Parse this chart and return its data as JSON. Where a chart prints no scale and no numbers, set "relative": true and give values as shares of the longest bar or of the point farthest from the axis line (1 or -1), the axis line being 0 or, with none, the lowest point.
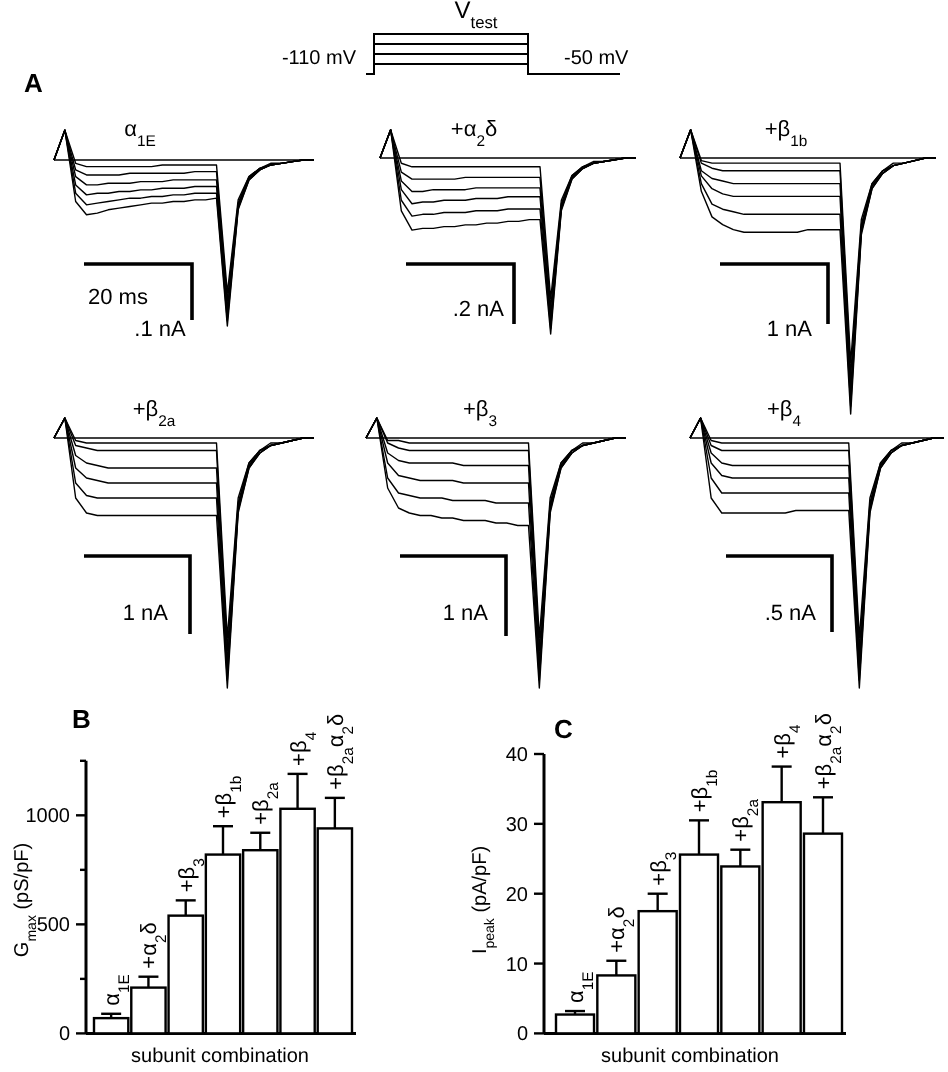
{
  "chart_data": [
    {
      "type": "other",
      "annotations": [
        "V$_{test}$",
        "-110 mV",
        "-50 mV"
      ]
    },
    {
      "type": "line",
      "title": "α$_{1E}$",
      "relative": true,
      "categories": [
        null,
        null,
        null,
        null,
        null,
        null,
        null,
        null,
        null,
        null,
        null,
        null,
        null,
        null,
        null,
        null,
        null,
        null,
        null,
        null,
        null,
        null,
        null,
        null,
        null
      ],
      "annotations": [
        "A",
        "20 ms",
        ".1 nA"
      ],
      "series": [
        {
          "color": "#000000",
          "values": [
            0,
            0.18,
            -0.25,
            -0.33,
            -0.32,
            -0.3,
            -0.29,
            -0.28,
            -0.27,
            -0.26,
            -0.26,
            -0.25,
            -0.25,
            -0.24,
            -0.24,
            -0.23,
            -1,
            -0.3,
            -0.12,
            -0.06,
            -0.03,
            -0.02,
            -0.01,
            0,
            0
          ]
        },
        {
          "color": "#000000",
          "values": [
            0,
            0.18,
            -0.2,
            -0.27,
            -0.26,
            -0.25,
            -0.24,
            -0.23,
            -0.23,
            -0.22,
            -0.22,
            -0.21,
            -0.21,
            -0.2,
            -0.2,
            -0.2,
            -0.97,
            -0.29,
            -0.12,
            -0.06,
            -0.03,
            -0.02,
            -0.01,
            0,
            0
          ]
        },
        {
          "color": "#000000",
          "values": [
            0,
            0.18,
            -0.15,
            -0.21,
            -0.2,
            -0.2,
            -0.19,
            -0.19,
            -0.18,
            -0.18,
            -0.17,
            -0.17,
            -0.17,
            -0.16,
            -0.16,
            -0.16,
            -0.94,
            -0.28,
            -0.11,
            -0.06,
            -0.03,
            -0.02,
            -0.01,
            0,
            0
          ]
        },
        {
          "color": "#000000",
          "values": [
            0,
            0.18,
            -0.1,
            -0.15,
            -0.15,
            -0.14,
            -0.14,
            -0.14,
            -0.13,
            -0.13,
            -0.13,
            -0.12,
            -0.12,
            -0.12,
            -0.12,
            -0.12,
            -0.9,
            -0.27,
            -0.11,
            -0.05,
            -0.03,
            -0.02,
            -0.01,
            0,
            0
          ]
        },
        {
          "color": "#000000",
          "values": [
            0,
            0.18,
            -0.06,
            -0.09,
            -0.09,
            -0.09,
            -0.09,
            -0.08,
            -0.08,
            -0.08,
            -0.08,
            -0.08,
            -0.08,
            -0.07,
            -0.07,
            -0.07,
            -0.85,
            -0.26,
            -0.1,
            -0.05,
            -0.03,
            -0.02,
            -0.01,
            0,
            0
          ]
        },
        {
          "color": "#000000",
          "values": [
            0,
            0.18,
            -0.02,
            -0.04,
            -0.04,
            -0.04,
            -0.04,
            -0.04,
            -0.04,
            -0.04,
            -0.03,
            -0.03,
            -0.03,
            -0.03,
            -0.03,
            -0.03,
            -0.8,
            -0.24,
            -0.1,
            -0.05,
            -0.02,
            -0.02,
            -0.01,
            0,
            0
          ]
        }
      ]
    },
    {
      "type": "line",
      "title": "+α$_{2}$δ",
      "relative": true,
      "categories": [
        null,
        null,
        null,
        null,
        null,
        null,
        null,
        null,
        null,
        null,
        null,
        null,
        null,
        null,
        null,
        null,
        null,
        null,
        null,
        null,
        null,
        null,
        null,
        null,
        null
      ],
      "annotations": [
        ".2 nA"
      ],
      "series": [
        {
          "color": "#000000",
          "values": [
            0,
            0.16,
            -0.3,
            -0.41,
            -0.4,
            -0.4,
            -0.39,
            -0.39,
            -0.38,
            -0.38,
            -0.37,
            -0.37,
            -0.36,
            -0.36,
            -0.35,
            -0.35,
            -1,
            -0.3,
            -0.12,
            -0.06,
            -0.03,
            -0.02,
            -0.01,
            0,
            0
          ]
        },
        {
          "color": "#000000",
          "values": [
            0,
            0.16,
            -0.24,
            -0.33,
            -0.32,
            -0.32,
            -0.31,
            -0.31,
            -0.31,
            -0.3,
            -0.3,
            -0.3,
            -0.29,
            -0.29,
            -0.29,
            -0.29,
            -0.97,
            -0.29,
            -0.12,
            -0.06,
            -0.03,
            -0.02,
            -0.01,
            0,
            0
          ]
        },
        {
          "color": "#000000",
          "values": [
            0,
            0.16,
            -0.18,
            -0.26,
            -0.25,
            -0.25,
            -0.24,
            -0.24,
            -0.24,
            -0.23,
            -0.23,
            -0.23,
            -0.22,
            -0.22,
            -0.22,
            -0.22,
            -0.94,
            -0.28,
            -0.11,
            -0.06,
            -0.03,
            -0.02,
            -0.01,
            0,
            0
          ]
        },
        {
          "color": "#000000",
          "values": [
            0,
            0.16,
            -0.13,
            -0.19,
            -0.19,
            -0.18,
            -0.18,
            -0.18,
            -0.18,
            -0.17,
            -0.17,
            -0.17,
            -0.17,
            -0.17,
            -0.17,
            -0.17,
            -0.9,
            -0.27,
            -0.11,
            -0.05,
            -0.03,
            -0.02,
            -0.01,
            0,
            0
          ]
        },
        {
          "color": "#000000",
          "values": [
            0,
            0.16,
            -0.08,
            -0.12,
            -0.12,
            -0.12,
            -0.12,
            -0.12,
            -0.11,
            -0.11,
            -0.11,
            -0.11,
            -0.11,
            -0.11,
            -0.11,
            -0.11,
            -0.85,
            -0.26,
            -0.1,
            -0.05,
            -0.03,
            -0.02,
            -0.01,
            0,
            0
          ]
        },
        {
          "color": "#000000",
          "values": [
            0,
            0.16,
            -0.03,
            -0.05,
            -0.05,
            -0.05,
            -0.05,
            -0.05,
            -0.05,
            -0.05,
            -0.05,
            -0.05,
            -0.05,
            -0.05,
            -0.05,
            -0.05,
            -0.8,
            -0.24,
            -0.1,
            -0.05,
            -0.02,
            -0.02,
            -0.01,
            0,
            0
          ]
        }
      ]
    },
    {
      "type": "line",
      "title": "+β$_{1b}$",
      "relative": true,
      "categories": [
        null,
        null,
        null,
        null,
        null,
        null,
        null,
        null,
        null,
        null,
        null,
        null,
        null,
        null,
        null,
        null,
        null,
        null,
        null,
        null,
        null,
        null,
        null,
        null,
        null
      ],
      "annotations": [
        "1 nA"
      ],
      "series": [
        {
          "color": "#000000",
          "values": [
            0,
            0.11,
            -0.13,
            -0.23,
            -0.26,
            -0.28,
            -0.29,
            -0.29,
            -0.29,
            -0.29,
            -0.29,
            -0.29,
            -0.28,
            -0.28,
            -0.28,
            -0.28,
            -1,
            -0.3,
            -0.12,
            -0.06,
            -0.03,
            -0.02,
            -0.01,
            0,
            0
          ]
        },
        {
          "color": "#000000",
          "values": [
            0,
            0.11,
            -0.1,
            -0.18,
            -0.2,
            -0.21,
            -0.22,
            -0.22,
            -0.22,
            -0.22,
            -0.22,
            -0.22,
            -0.22,
            -0.22,
            -0.22,
            -0.22,
            -0.97,
            -0.29,
            -0.12,
            -0.06,
            -0.03,
            -0.02,
            -0.01,
            0,
            0
          ]
        },
        {
          "color": "#000000",
          "values": [
            0,
            0.11,
            -0.07,
            -0.12,
            -0.14,
            -0.15,
            -0.15,
            -0.15,
            -0.15,
            -0.15,
            -0.15,
            -0.15,
            -0.15,
            -0.15,
            -0.15,
            -0.15,
            -0.94,
            -0.28,
            -0.11,
            -0.06,
            -0.03,
            -0.02,
            -0.01,
            0,
            0
          ]
        },
        {
          "color": "#000000",
          "values": [
            0,
            0.11,
            -0.05,
            -0.08,
            -0.09,
            -0.1,
            -0.1,
            -0.1,
            -0.1,
            -0.1,
            -0.1,
            -0.1,
            -0.1,
            -0.1,
            -0.1,
            -0.1,
            -0.9,
            -0.27,
            -0.11,
            -0.05,
            -0.03,
            -0.02,
            -0.01,
            0,
            0
          ]
        },
        {
          "color": "#000000",
          "values": [
            0,
            0.11,
            -0.02,
            -0.04,
            -0.05,
            -0.05,
            -0.05,
            -0.05,
            -0.05,
            -0.05,
            -0.05,
            -0.05,
            -0.05,
            -0.05,
            -0.05,
            -0.05,
            -0.85,
            -0.26,
            -0.1,
            -0.05,
            -0.03,
            -0.02,
            -0.01,
            0,
            0
          ]
        },
        {
          "color": "#000000",
          "values": [
            0,
            0.11,
            -0.01,
            -0.02,
            -0.02,
            -0.02,
            -0.02,
            -0.02,
            -0.02,
            -0.02,
            -0.02,
            -0.02,
            -0.02,
            -0.02,
            -0.02,
            -0.02,
            -0.8,
            -0.24,
            -0.1,
            -0.05,
            -0.02,
            -0.02,
            -0.01,
            0,
            0
          ]
        }
      ]
    },
    {
      "type": "line",
      "title": "+β$_{2a}$",
      "relative": true,
      "categories": [
        null,
        null,
        null,
        null,
        null,
        null,
        null,
        null,
        null,
        null,
        null,
        null,
        null,
        null,
        null,
        null,
        null,
        null,
        null,
        null,
        null,
        null,
        null,
        null,
        null
      ],
      "annotations": [
        "1 nA"
      ],
      "series": [
        {
          "color": "#000000",
          "values": [
            0,
            0.08,
            -0.24,
            -0.3,
            -0.31,
            -0.31,
            -0.31,
            -0.31,
            -0.31,
            -0.31,
            -0.31,
            -0.31,
            -0.31,
            -0.31,
            -0.31,
            -0.31,
            -1,
            -0.3,
            -0.12,
            -0.06,
            -0.03,
            -0.02,
            -0.01,
            0,
            0
          ]
        },
        {
          "color": "#000000",
          "values": [
            0,
            0.08,
            -0.18,
            -0.23,
            -0.24,
            -0.24,
            -0.24,
            -0.24,
            -0.24,
            -0.24,
            -0.24,
            -0.24,
            -0.24,
            -0.24,
            -0.24,
            -0.24,
            -0.97,
            -0.29,
            -0.12,
            -0.06,
            -0.03,
            -0.02,
            -0.01,
            0,
            0
          ]
        },
        {
          "color": "#000000",
          "values": [
            0,
            0.08,
            -0.12,
            -0.16,
            -0.17,
            -0.18,
            -0.18,
            -0.18,
            -0.18,
            -0.18,
            -0.18,
            -0.18,
            -0.18,
            -0.18,
            -0.18,
            -0.18,
            -0.94,
            -0.28,
            -0.11,
            -0.06,
            -0.03,
            -0.02,
            -0.01,
            0,
            0
          ]
        },
        {
          "color": "#000000",
          "values": [
            0,
            0.08,
            -0.07,
            -0.1,
            -0.11,
            -0.12,
            -0.12,
            -0.12,
            -0.12,
            -0.12,
            -0.12,
            -0.12,
            -0.12,
            -0.12,
            -0.12,
            -0.12,
            -0.9,
            -0.27,
            -0.11,
            -0.05,
            -0.03,
            -0.02,
            -0.01,
            0,
            0
          ]
        },
        {
          "color": "#000000",
          "values": [
            0,
            0.08,
            -0.03,
            -0.04,
            -0.05,
            -0.05,
            -0.05,
            -0.05,
            -0.05,
            -0.05,
            -0.05,
            -0.05,
            -0.05,
            -0.05,
            -0.05,
            -0.05,
            -0.85,
            -0.26,
            -0.1,
            -0.05,
            -0.03,
            -0.02,
            -0.01,
            0,
            0
          ]
        },
        {
          "color": "#000000",
          "values": [
            0,
            0.08,
            -0.01,
            -0.02,
            -0.02,
            -0.02,
            -0.02,
            -0.02,
            -0.02,
            -0.02,
            -0.02,
            -0.02,
            -0.02,
            -0.02,
            -0.02,
            -0.02,
            -0.8,
            -0.24,
            -0.1,
            -0.05,
            -0.02,
            -0.02,
            -0.01,
            0,
            0
          ]
        }
      ]
    },
    {
      "type": "line",
      "title": "+β$_{3}$",
      "relative": true,
      "categories": [
        null,
        null,
        null,
        null,
        null,
        null,
        null,
        null,
        null,
        null,
        null,
        null,
        null,
        null,
        null,
        null,
        null,
        null,
        null,
        null,
        null,
        null,
        null,
        null,
        null
      ],
      "annotations": [
        "1 nA"
      ],
      "series": [
        {
          "color": "#000000",
          "values": [
            0,
            0.08,
            -0.2,
            -0.28,
            -0.3,
            -0.31,
            -0.31,
            -0.32,
            -0.32,
            -0.33,
            -0.33,
            -0.33,
            -0.34,
            -0.34,
            -0.35,
            -0.35,
            -1,
            -0.3,
            -0.12,
            -0.06,
            -0.03,
            -0.02,
            -0.01,
            0,
            0
          ]
        },
        {
          "color": "#000000",
          "values": [
            0,
            0.08,
            -0.16,
            -0.22,
            -0.23,
            -0.24,
            -0.24,
            -0.24,
            -0.25,
            -0.25,
            -0.25,
            -0.25,
            -0.26,
            -0.26,
            -0.26,
            -0.26,
            -0.97,
            -0.29,
            -0.12,
            -0.06,
            -0.03,
            -0.02,
            -0.01,
            0,
            0
          ]
        },
        {
          "color": "#000000",
          "values": [
            0,
            0.08,
            -0.1,
            -0.15,
            -0.16,
            -0.17,
            -0.17,
            -0.17,
            -0.17,
            -0.18,
            -0.18,
            -0.18,
            -0.18,
            -0.18,
            -0.18,
            -0.18,
            -0.94,
            -0.28,
            -0.11,
            -0.06,
            -0.03,
            -0.02,
            -0.01,
            0,
            0
          ]
        },
        {
          "color": "#000000",
          "values": [
            0,
            0.08,
            -0.06,
            -0.09,
            -0.1,
            -0.1,
            -0.1,
            -0.1,
            -0.1,
            -0.11,
            -0.11,
            -0.11,
            -0.11,
            -0.11,
            -0.11,
            -0.11,
            -0.9,
            -0.27,
            -0.11,
            -0.05,
            -0.03,
            -0.02,
            -0.01,
            0,
            0
          ]
        },
        {
          "color": "#000000",
          "values": [
            0,
            0.08,
            -0.02,
            -0.04,
            -0.05,
            -0.05,
            -0.05,
            -0.05,
            -0.05,
            -0.05,
            -0.05,
            -0.05,
            -0.05,
            -0.05,
            -0.05,
            -0.05,
            -0.85,
            -0.26,
            -0.1,
            -0.05,
            -0.03,
            -0.02,
            -0.01,
            0,
            0
          ]
        },
        {
          "color": "#000000",
          "values": [
            0,
            0.08,
            -0.01,
            -0.01,
            -0.02,
            -0.02,
            -0.02,
            -0.02,
            -0.02,
            -0.02,
            -0.02,
            -0.02,
            -0.02,
            -0.02,
            -0.02,
            -0.02,
            -0.8,
            -0.24,
            -0.1,
            -0.05,
            -0.02,
            -0.02,
            -0.01,
            0,
            0
          ]
        }
      ]
    },
    {
      "type": "line",
      "title": "+β$_{4}$",
      "relative": true,
      "categories": [
        null,
        null,
        null,
        null,
        null,
        null,
        null,
        null,
        null,
        null,
        null,
        null,
        null,
        null,
        null,
        null,
        null,
        null,
        null,
        null,
        null,
        null,
        null,
        null,
        null
      ],
      "annotations": [
        ".5 nA"
      ],
      "series": [
        {
          "color": "#000000",
          "values": [
            0,
            0.08,
            -0.24,
            -0.3,
            -0.3,
            -0.3,
            -0.3,
            -0.3,
            -0.3,
            -0.3,
            -0.29,
            -0.29,
            -0.29,
            -0.29,
            -0.29,
            -0.29,
            -1,
            -0.3,
            -0.12,
            -0.06,
            -0.03,
            -0.02,
            -0.01,
            0,
            0
          ]
        },
        {
          "color": "#000000",
          "values": [
            0,
            0.08,
            -0.16,
            -0.22,
            -0.22,
            -0.22,
            -0.22,
            -0.22,
            -0.22,
            -0.22,
            -0.22,
            -0.22,
            -0.22,
            -0.22,
            -0.22,
            -0.22,
            -0.97,
            -0.29,
            -0.12,
            -0.06,
            -0.03,
            -0.02,
            -0.01,
            0,
            0
          ]
        },
        {
          "color": "#000000",
          "values": [
            0,
            0.08,
            -0.1,
            -0.15,
            -0.16,
            -0.16,
            -0.16,
            -0.16,
            -0.16,
            -0.16,
            -0.16,
            -0.16,
            -0.16,
            -0.16,
            -0.16,
            -0.16,
            -0.94,
            -0.28,
            -0.11,
            -0.06,
            -0.03,
            -0.02,
            -0.01,
            0,
            0
          ]
        },
        {
          "color": "#000000",
          "values": [
            0,
            0.08,
            -0.06,
            -0.1,
            -0.11,
            -0.11,
            -0.11,
            -0.11,
            -0.11,
            -0.11,
            -0.11,
            -0.11,
            -0.11,
            -0.11,
            -0.11,
            -0.11,
            -0.9,
            -0.27,
            -0.11,
            -0.05,
            -0.03,
            -0.02,
            -0.01,
            0,
            0
          ]
        },
        {
          "color": "#000000",
          "values": [
            0,
            0.08,
            -0.03,
            -0.05,
            -0.05,
            -0.05,
            -0.05,
            -0.05,
            -0.05,
            -0.05,
            -0.05,
            -0.05,
            -0.05,
            -0.05,
            -0.05,
            -0.05,
            -0.85,
            -0.26,
            -0.1,
            -0.05,
            -0.03,
            -0.02,
            -0.01,
            0,
            0
          ]
        },
        {
          "color": "#000000",
          "values": [
            0,
            0.08,
            -0.01,
            -0.02,
            -0.02,
            -0.02,
            -0.02,
            -0.02,
            -0.02,
            -0.02,
            -0.02,
            -0.02,
            -0.02,
            -0.02,
            -0.02,
            -0.02,
            -0.8,
            -0.24,
            -0.1,
            -0.05,
            -0.02,
            -0.02,
            -0.01,
            0,
            0
          ]
        }
      ]
    },
    {
      "type": "bar",
      "title": "B",
      "xlabel": "subunit combination",
      "ylabel": "G$_{max}$ (pS/pF)",
      "categories": [
        "α$_{1E}$",
        "+α$_{2}$δ",
        "+β$_{3}$",
        "+β$_{1b}$",
        "+β$_{2a}$",
        "+β$_{4}$",
        "+β$_{2a}$α$_{2}$δ"
      ],
      "values": [
        70,
        210,
        540,
        820,
        840,
        1030,
        940
      ],
      "errors": [
        [
          70,
          90
        ],
        [
          210,
          260
        ],
        [
          540,
          610
        ],
        [
          820,
          950
        ],
        [
          840,
          920
        ],
        [
          1030,
          1190
        ],
        [
          940,
          1080
        ]
      ],
      "color": "#ffffff",
      "ylim": [
        0,
        1250
      ],
      "yticks": [
        0,
        {
          "value": 250,
          "label": null
        },
        500,
        {
          "value": 750,
          "label": null
        },
        1000,
        {
          "value": 1250,
          "label": null
        }
      ]
    },
    {
      "type": "bar",
      "title": "C",
      "xlabel": "subunit combination",
      "ylabel": "I$_{peak}$ (pA/pF)",
      "categories": [
        "α$_{1E}$",
        "+α$_{2}$δ",
        "+β$_{3}$",
        "+β$_{1b}$",
        "+β$_{2a}$",
        "+β$_{4}$",
        "+β$_{2a}$α$_{2}$δ"
      ],
      "values": [
        2.7,
        8.3,
        17.5,
        25.6,
        23.9,
        33.1,
        28.6
      ],
      "errors": [
        [
          2.7,
          3.2
        ],
        [
          8.3,
          10.4
        ],
        [
          17.5,
          20
        ],
        [
          25.6,
          30.5
        ],
        [
          23.9,
          26.3
        ],
        [
          33.1,
          38.2
        ],
        [
          28.6,
          33.8
        ]
      ],
      "color": "#ffffff",
      "ylim": [
        0,
        40
      ],
      "yticks": [
        0,
        10,
        20,
        30,
        40
      ]
    }
  ]
}
